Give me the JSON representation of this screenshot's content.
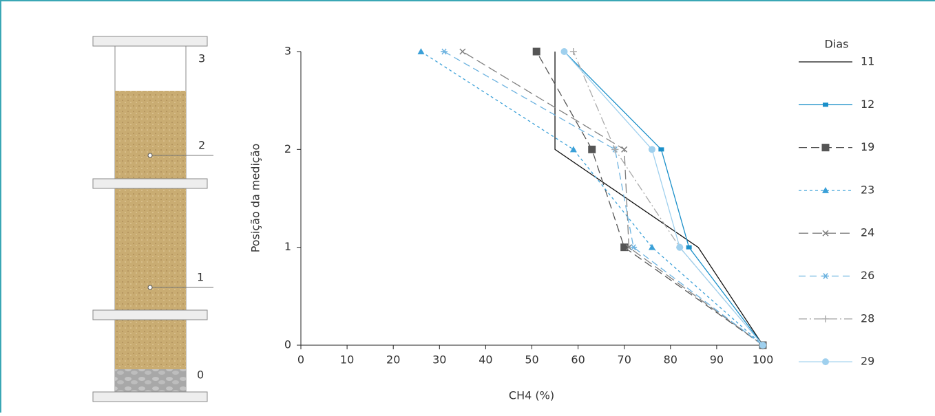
{
  "column_labels": [
    "3",
    "2",
    "1",
    "0"
  ],
  "chart_data": {
    "type": "line",
    "x_label": "CH4 (%)",
    "y_label": "Posição da medição",
    "legend_title": "Dias",
    "y": [
      0,
      1,
      2,
      3
    ],
    "xlim": [
      0,
      100
    ],
    "xticks": [
      0,
      10,
      20,
      30,
      40,
      50,
      60,
      70,
      80,
      90,
      100
    ],
    "ylim": [
      0,
      3
    ],
    "yticks": [
      0,
      1,
      2,
      3
    ],
    "legend": "right",
    "series": [
      {
        "name": "11",
        "color": "#111111",
        "dash": "none",
        "marker": "none",
        "values": [
          100,
          86,
          55,
          55
        ]
      },
      {
        "name": "12",
        "color": "#1a8fc9",
        "dash": "none",
        "marker": "small-square",
        "values": [
          100,
          84,
          78,
          57
        ]
      },
      {
        "name": "19",
        "color": "#555555",
        "dash": "12 6",
        "marker": "square",
        "values": [
          100,
          70,
          63,
          51
        ]
      },
      {
        "name": "23",
        "color": "#3aa0d8",
        "dash": "4 4",
        "marker": "triangle",
        "values": [
          100,
          76,
          59,
          26
        ]
      },
      {
        "name": "24",
        "color": "#808080",
        "dash": "14 6",
        "marker": "x",
        "values": [
          100,
          71,
          70,
          35
        ]
      },
      {
        "name": "26",
        "color": "#6db3e0",
        "dash": "10 6",
        "marker": "asterisk",
        "values": [
          100,
          72,
          68,
          31
        ]
      },
      {
        "name": "28",
        "color": "#aaaaaa",
        "dash": "12 4 2 4",
        "marker": "plus",
        "values": [
          100,
          82,
          68,
          59
        ]
      },
      {
        "name": "29",
        "color": "#9fd0ee",
        "dash": "none",
        "marker": "circle",
        "values": [
          100,
          82,
          76,
          57
        ]
      }
    ]
  }
}
